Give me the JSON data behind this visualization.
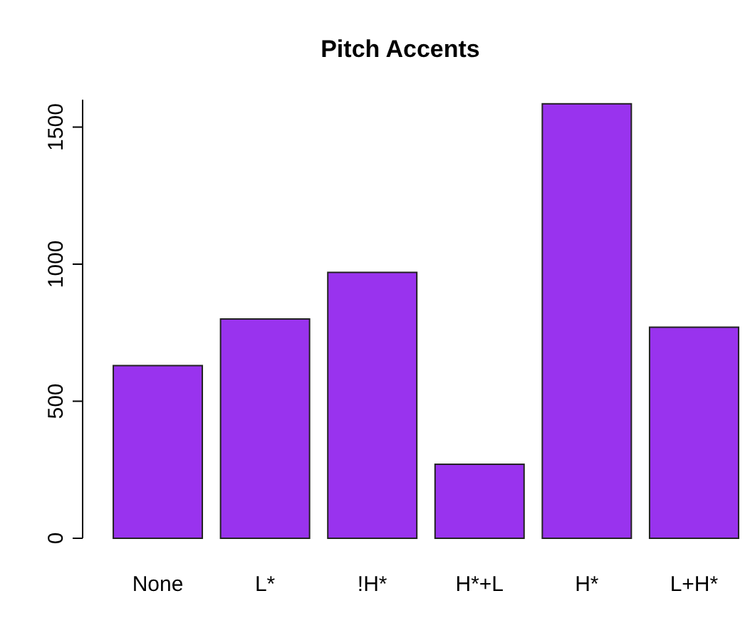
{
  "chart_data": {
    "type": "bar",
    "title": "Pitch Accents",
    "categories": [
      "None",
      "L*",
      "!H*",
      "H*+L",
      "H*",
      "L+H*"
    ],
    "values": [
      630,
      800,
      970,
      270,
      1585,
      770
    ],
    "color": "#9933ee",
    "ylim": [
      0,
      1600
    ],
    "yticks": [
      0,
      500,
      1000,
      1500
    ],
    "grid": false
  }
}
